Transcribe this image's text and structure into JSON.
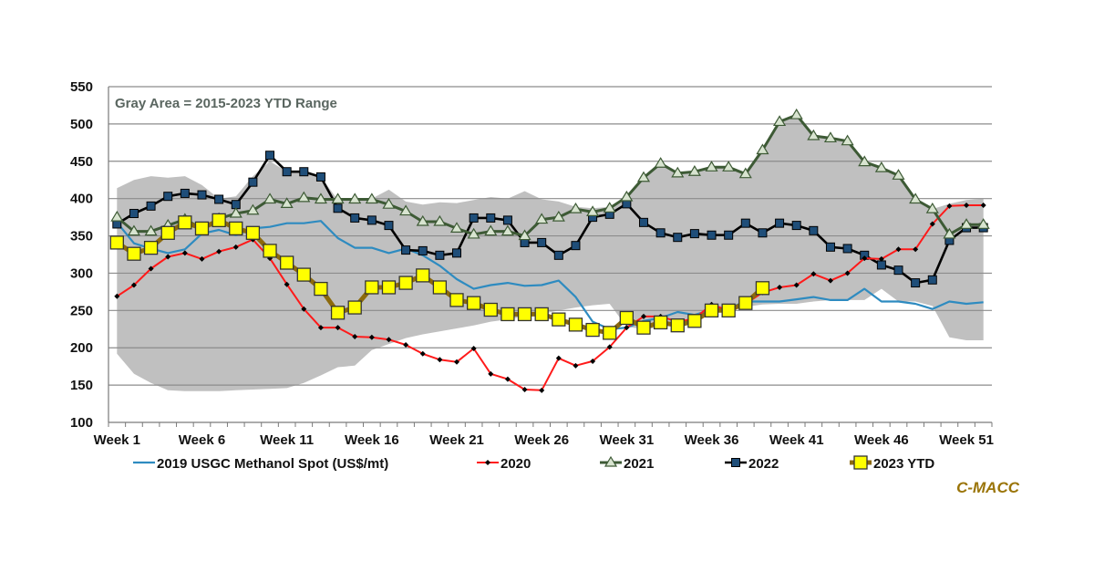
{
  "chart_data": {
    "type": "line",
    "title": "",
    "xlabel": "",
    "ylabel": "",
    "ylim": [
      100,
      550
    ],
    "yticks": [
      100,
      150,
      200,
      250,
      300,
      350,
      400,
      450,
      500,
      550
    ],
    "xtick_labels": [
      "Week 1",
      "Week 6",
      "Week 11",
      "Week 16",
      "Week 21",
      "Week 26",
      "Week 31",
      "Week 36",
      "Week 41",
      "Week 46",
      "Week 51"
    ],
    "xtick_weeks": [
      1,
      6,
      11,
      16,
      21,
      26,
      31,
      36,
      41,
      46,
      51
    ],
    "weeks": 52,
    "grid": "horizontal",
    "legend_position": "bottom",
    "annotation": "Gray Area = 2015-2023 YTD Range",
    "brand": "C-MACC",
    "range_band": {
      "name": "2015-2023 YTD Range",
      "color": "#c0c0c0",
      "upper": [
        414,
        425,
        430,
        428,
        430,
        418,
        400,
        403,
        430,
        450,
        436,
        436,
        429,
        398,
        399,
        400,
        412,
        396,
        392,
        395,
        394,
        398,
        402,
        400,
        410,
        399,
        396,
        389,
        387,
        389,
        402,
        428,
        447,
        434,
        436,
        442,
        442,
        433,
        465,
        503,
        512,
        484,
        481,
        477,
        449,
        441,
        431,
        399,
        386,
        393,
        398,
        400
      ],
      "lower": [
        192,
        165,
        153,
        143,
        142,
        142,
        142,
        143,
        144,
        145,
        146,
        153,
        163,
        174,
        176,
        197,
        205,
        213,
        218,
        222,
        226,
        230,
        235,
        238,
        242,
        245,
        250,
        254,
        257,
        259,
        228,
        225,
        227,
        232,
        237,
        248,
        255,
        255,
        258,
        259,
        259,
        262,
        264,
        264,
        264,
        279,
        262,
        262,
        256,
        214,
        210,
        210
      ]
    },
    "series": [
      {
        "name": "2019 USGC Methanol Spot (US$/mt)",
        "color": "#2e8bc0",
        "marker": "none",
        "values": [
          368,
          340,
          333,
          327,
          332,
          353,
          358,
          351,
          360,
          362,
          367,
          367,
          370,
          347,
          334,
          334,
          327,
          333,
          324,
          310,
          292,
          279,
          284,
          287,
          283,
          284,
          290,
          268,
          235,
          225,
          227,
          236,
          240,
          248,
          244,
          251,
          253,
          262,
          262,
          262,
          265,
          268,
          264,
          264,
          279,
          262,
          262,
          259,
          252,
          262,
          259,
          261
        ]
      },
      {
        "name": "2020",
        "color": "#ff1a1a",
        "marker": "diamond",
        "values": [
          269,
          284,
          306,
          322,
          327,
          319,
          329,
          335,
          345,
          320,
          285,
          252,
          227,
          227,
          215,
          214,
          211,
          204,
          192,
          184,
          181,
          199,
          165,
          158,
          144,
          143,
          186,
          176,
          182,
          201,
          227,
          242,
          242,
          235,
          239,
          258,
          250,
          259,
          274,
          281,
          284,
          299,
          290,
          300,
          320,
          319,
          332,
          332,
          366,
          390,
          391,
          391
        ]
      },
      {
        "name": "2021",
        "color": "#3d5a35",
        "marker": "triangle",
        "values": [
          375,
          356,
          356,
          364,
          372,
          360,
          373,
          380,
          384,
          399,
          393,
          401,
          399,
          399,
          399,
          399,
          392,
          383,
          369,
          369,
          360,
          352,
          356,
          356,
          350,
          372,
          375,
          386,
          382,
          387,
          402,
          428,
          447,
          434,
          436,
          442,
          442,
          433,
          465,
          503,
          512,
          484,
          481,
          477,
          449,
          441,
          431,
          399,
          386,
          352,
          365,
          365
        ]
      },
      {
        "name": "2022",
        "color": "#000000",
        "marker": "square-navy",
        "values": [
          366,
          380,
          390,
          403,
          407,
          405,
          399,
          392,
          422,
          458,
          436,
          436,
          429,
          387,
          374,
          371,
          364,
          331,
          330,
          324,
          327,
          374,
          374,
          371,
          341,
          341,
          324,
          337,
          375,
          379,
          393,
          368,
          354,
          348,
          353,
          351,
          351,
          367,
          354,
          367,
          364,
          357,
          335,
          333,
          324,
          311,
          304,
          287,
          291,
          344,
          361,
          361
        ]
      },
      {
        "name": "2023 YTD",
        "color": "#8c6a0c",
        "marker": "square-yellow",
        "values": [
          341,
          326,
          334,
          354,
          368,
          360,
          371,
          360,
          354,
          330,
          314,
          298,
          279,
          247,
          254,
          281,
          281,
          287,
          297,
          281,
          264,
          260,
          251,
          245,
          245,
          245,
          238,
          231,
          224,
          220,
          240,
          227,
          234,
          230,
          236,
          250,
          250,
          260,
          280
        ]
      }
    ]
  }
}
